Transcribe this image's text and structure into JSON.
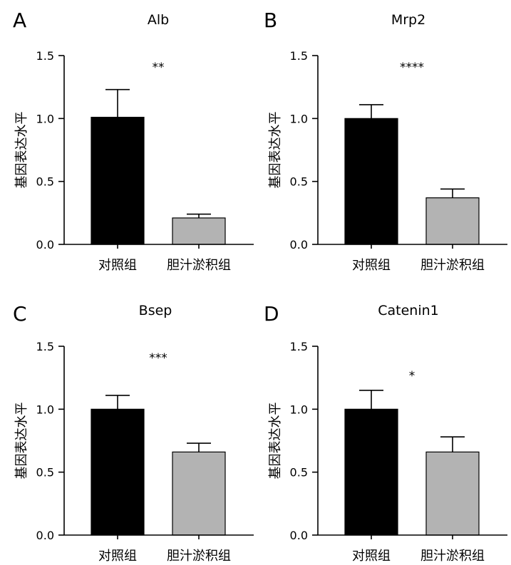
{
  "figure": {
    "ylabel": "基因表达水平",
    "categories": [
      "对照组",
      "胆汁淤积组"
    ],
    "colors": {
      "control": "#000000",
      "model": "#b3b3b3"
    }
  },
  "chart_data": [
    {
      "panel": "A",
      "type": "bar",
      "title": "Alb",
      "categories": [
        "对照组",
        "胆汁淤积组"
      ],
      "values": [
        1.01,
        0.21
      ],
      "errors": [
        0.22,
        0.03
      ],
      "significance": "**",
      "ylabel": "基因表达水平",
      "ylim": [
        0,
        1.5
      ],
      "yticks": [
        "0.0",
        "0.5",
        "1.0",
        "1.5"
      ]
    },
    {
      "panel": "B",
      "type": "bar",
      "title": "Mrp2",
      "categories": [
        "对照组",
        "胆汁淤积组"
      ],
      "values": [
        1.0,
        0.37
      ],
      "errors": [
        0.11,
        0.07
      ],
      "significance": "****",
      "ylabel": "基因表达水平",
      "ylim": [
        0,
        1.5
      ],
      "yticks": [
        "0.0",
        "0.5",
        "1.0",
        "1.5"
      ]
    },
    {
      "panel": "C",
      "type": "bar",
      "title": "Bsep",
      "categories": [
        "对照组",
        "胆汁淤积组"
      ],
      "values": [
        1.0,
        0.66
      ],
      "errors": [
        0.11,
        0.07
      ],
      "significance": "***",
      "ylabel": "基因表达水平",
      "ylim": [
        0,
        1.5
      ],
      "yticks": [
        "0.0",
        "0.5",
        "1.0",
        "1.5"
      ]
    },
    {
      "panel": "D",
      "type": "bar",
      "title": "Catenin1",
      "categories": [
        "对照组",
        "胆汁淤积组"
      ],
      "values": [
        1.0,
        0.66
      ],
      "errors": [
        0.15,
        0.12
      ],
      "significance": "*",
      "ylabel": "基因表达水平",
      "ylim": [
        0,
        1.5
      ],
      "yticks": [
        "0.0",
        "0.5",
        "1.0",
        "1.5"
      ]
    }
  ]
}
